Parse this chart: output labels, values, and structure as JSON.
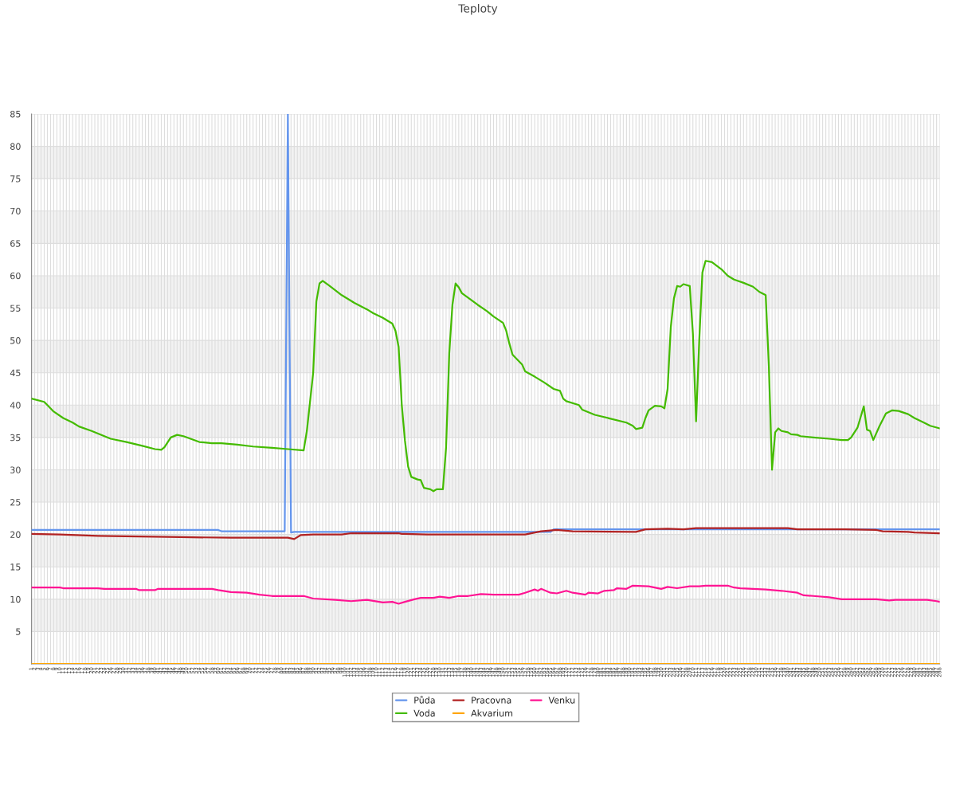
{
  "chart_data": {
    "type": "line",
    "title": "Teploty",
    "xlim": [
      1,
      288
    ],
    "xticks": [
      1,
      2,
      3,
      4,
      5,
      6,
      7,
      8,
      9,
      10,
      11,
      12,
      13,
      14,
      15,
      16,
      17,
      18,
      19,
      20,
      21,
      22,
      23,
      24,
      25,
      26,
      27,
      28,
      29,
      30,
      31,
      32,
      33,
      34,
      35,
      36,
      37,
      38,
      39,
      40,
      41,
      42,
      43,
      44,
      45,
      46,
      47,
      48,
      49,
      50,
      51,
      52,
      53,
      54,
      55,
      56,
      57,
      58,
      59,
      60,
      61,
      62,
      63,
      64,
      65,
      66,
      67,
      68,
      69,
      70,
      71,
      72,
      73,
      74,
      75,
      76,
      77,
      78,
      79,
      80,
      81,
      82,
      83,
      84,
      85,
      86,
      87,
      88,
      89,
      90,
      91,
      92,
      93,
      94,
      95,
      96,
      97,
      98,
      99,
      100,
      101,
      102,
      103,
      104,
      105,
      106,
      107,
      108,
      109,
      110,
      111,
      112,
      113,
      114,
      115,
      116,
      117,
      118,
      119,
      120,
      121,
      122,
      123,
      124,
      125,
      126,
      127,
      128,
      129,
      130,
      131,
      132,
      133,
      134,
      135,
      136,
      137,
      138,
      139,
      140,
      141,
      142,
      143,
      144,
      145,
      146,
      147,
      148,
      149,
      150,
      151,
      152,
      153,
      154,
      155,
      156,
      157,
      158,
      159,
      160,
      161,
      162,
      163,
      164,
      165,
      166,
      167,
      168,
      169,
      170,
      171,
      172,
      173,
      174,
      175,
      176,
      177,
      178,
      179,
      180,
      181,
      182,
      183,
      184,
      185,
      186,
      187,
      188,
      189,
      190,
      191,
      192,
      193,
      194,
      195,
      196,
      197,
      198,
      199,
      200,
      201,
      202,
      203,
      204,
      205,
      206,
      207,
      208,
      209,
      210,
      211,
      212,
      213,
      214,
      215,
      216,
      217,
      218,
      219,
      220,
      221,
      222,
      223,
      224,
      225,
      226,
      227,
      228,
      229,
      230,
      231,
      232,
      233,
      234,
      235,
      236,
      237,
      238,
      239,
      240,
      241,
      242,
      243,
      244,
      245,
      246,
      247,
      248,
      249,
      250,
      251,
      252,
      253,
      254,
      255,
      256,
      257,
      258,
      259,
      260,
      261,
      262,
      263,
      264,
      265,
      266,
      267,
      268,
      269,
      270,
      271,
      272,
      273,
      274,
      275,
      276,
      277,
      278,
      279,
      280,
      281,
      282,
      283,
      284,
      285,
      286,
      287,
      288
    ],
    "ylim": [
      0,
      85
    ],
    "yticks": [
      {
        "value": 0,
        "label": null
      },
      5,
      10,
      15,
      20,
      25,
      30,
      35,
      40,
      45,
      50,
      55,
      60,
      65,
      70,
      75,
      80,
      85
    ],
    "grid": true,
    "legend": "bottom",
    "marker": "none",
    "line_style": "solid",
    "bands": [
      {
        "axis": "y",
        "from": 5,
        "to": 10,
        "color": "#f2f2f2"
      },
      {
        "axis": "y",
        "from": 15,
        "to": 20,
        "color": "#f2f2f2"
      },
      {
        "axis": "y",
        "from": 25,
        "to": 30,
        "color": "#f2f2f2"
      },
      {
        "axis": "y",
        "from": 35,
        "to": 40,
        "color": "#f2f2f2"
      },
      {
        "axis": "y",
        "from": 45,
        "to": 50,
        "color": "#f2f2f2"
      },
      {
        "axis": "y",
        "from": 55,
        "to": 60,
        "color": "#f2f2f2"
      },
      {
        "axis": "y",
        "from": 65,
        "to": 70,
        "color": "#f2f2f2"
      },
      {
        "axis": "y",
        "from": 75,
        "to": 80,
        "color": "#f2f2f2"
      }
    ],
    "series": [
      {
        "name": "Půda",
        "color": "#6495ed",
        "x": [
          1,
          60,
          61,
          81,
          82,
          83,
          84,
          165,
          166,
          288
        ],
        "values": [
          20.7,
          20.7,
          20.5,
          20.5,
          85,
          20.3,
          20.4,
          20.4,
          20.8,
          20.8
        ]
      },
      {
        "name": "Voda",
        "color": "#44bb00",
        "x": [
          1,
          5,
          6,
          8,
          11,
          14,
          16,
          20,
          24,
          26,
          31,
          36,
          40,
          42,
          43,
          45,
          47,
          49,
          54,
          58,
          61,
          66,
          71,
          77,
          82,
          87,
          88,
          90,
          91,
          92,
          93,
          95,
          99,
          103,
          107,
          109,
          112,
          115,
          116,
          117,
          118,
          119,
          120,
          121,
          123,
          124,
          125,
          127,
          128,
          129,
          131,
          132,
          133,
          134,
          135,
          136,
          137,
          142,
          145,
          147,
          150,
          151,
          152,
          153,
          156,
          157,
          160,
          163,
          166,
          168,
          169,
          170,
          174,
          175,
          179,
          184,
          189,
          191,
          192,
          194,
          195,
          196,
          198,
          200,
          201,
          202,
          203,
          204,
          205,
          206,
          207,
          209,
          210,
          211,
          212,
          213,
          214,
          216,
          219,
          221,
          223,
          226,
          229,
          231,
          233,
          234,
          235,
          236,
          237,
          238,
          240,
          241,
          243,
          244,
          248,
          253,
          257,
          259,
          260,
          262,
          264,
          265,
          266,
          267,
          269,
          271,
          273,
          275,
          278,
          280,
          283,
          285,
          288
        ],
        "values": [
          41.0,
          40.5,
          40.0,
          39.0,
          38.0,
          37.3,
          36.7,
          36.0,
          35.2,
          34.8,
          34.3,
          33.7,
          33.2,
          33.1,
          33.5,
          35.0,
          35.4,
          35.2,
          34.3,
          34.1,
          34.1,
          33.9,
          33.6,
          33.4,
          33.2,
          33.0,
          36.0,
          45.0,
          56.0,
          58.8,
          59.2,
          58.5,
          57.0,
          55.8,
          54.8,
          54.2,
          53.5,
          52.6,
          51.5,
          49.0,
          40.0,
          34.5,
          30.5,
          28.9,
          28.5,
          28.4,
          27.2,
          27.0,
          26.7,
          27.0,
          27.0,
          33.5,
          48.0,
          55.5,
          58.8,
          58.2,
          57.3,
          55.5,
          54.5,
          53.7,
          52.7,
          51.5,
          49.5,
          47.8,
          46.3,
          45.2,
          44.4,
          43.5,
          42.5,
          42.2,
          41.0,
          40.6,
          40.0,
          39.3,
          38.5,
          37.9,
          37.3,
          36.8,
          36.3,
          36.5,
          38.0,
          39.2,
          39.9,
          39.8,
          39.5,
          42.5,
          52.0,
          56.5,
          58.4,
          58.3,
          58.7,
          58.4,
          51.0,
          37.5,
          50.0,
          60.5,
          62.3,
          62.1,
          61.0,
          60.0,
          59.4,
          58.9,
          58.3,
          57.5,
          57.0,
          46.0,
          30.0,
          35.8,
          36.4,
          36.0,
          35.8,
          35.5,
          35.4,
          35.2,
          35.0,
          34.8,
          34.6,
          34.6,
          35.0,
          36.5,
          39.8,
          36.2,
          36.0,
          34.6,
          36.8,
          38.7,
          39.2,
          39.1,
          38.6,
          38.0,
          37.3,
          36.8,
          36.4
        ]
      },
      {
        "name": "Pracovna",
        "color": "#b22222",
        "x": [
          1,
          10,
          22,
          35,
          48,
          64,
          82,
          84,
          86,
          90,
          99,
          102,
          117,
          118,
          126,
          157,
          162,
          167,
          172,
          192,
          195,
          202,
          207,
          211,
          240,
          243,
          258,
          268,
          270,
          278,
          280,
          288
        ],
        "values": [
          20.1,
          20.0,
          19.8,
          19.7,
          19.6,
          19.5,
          19.5,
          19.3,
          19.9,
          20.0,
          20.0,
          20.2,
          20.2,
          20.1,
          20.0,
          20.0,
          20.5,
          20.7,
          20.5,
          20.4,
          20.8,
          20.9,
          20.8,
          21.0,
          21.0,
          20.8,
          20.8,
          20.7,
          20.5,
          20.4,
          20.3,
          20.2
        ]
      },
      {
        "name": "Akvarium",
        "color": "#ffa500",
        "x": [
          1,
          288
        ],
        "values": [
          0,
          0
        ]
      },
      {
        "name": "Venku",
        "color": "#ff1493",
        "x": [
          1,
          10,
          11,
          22,
          24,
          34,
          35,
          40,
          41,
          58,
          60,
          64,
          69,
          73,
          77,
          87,
          90,
          97,
          102,
          107,
          112,
          115,
          117,
          119,
          122,
          124,
          128,
          130,
          133,
          136,
          139,
          143,
          147,
          155,
          157,
          160,
          161,
          162,
          165,
          167,
          170,
          172,
          176,
          177,
          180,
          182,
          185,
          186,
          189,
          191,
          196,
          200,
          202,
          205,
          209,
          212,
          214,
          221,
          223,
          225,
          229,
          233,
          238,
          243,
          245,
          248,
          253,
          257,
          268,
          272,
          274,
          284,
          287,
          288
        ],
        "values": [
          11.8,
          11.8,
          11.7,
          11.7,
          11.6,
          11.6,
          11.4,
          11.4,
          11.6,
          11.6,
          11.4,
          11.1,
          11.0,
          10.7,
          10.5,
          10.5,
          10.1,
          9.9,
          9.7,
          9.9,
          9.5,
          9.6,
          9.3,
          9.6,
          10.0,
          10.2,
          10.2,
          10.4,
          10.2,
          10.5,
          10.5,
          10.8,
          10.7,
          10.7,
          11.0,
          11.5,
          11.3,
          11.6,
          11.0,
          10.9,
          11.3,
          11.0,
          10.7,
          11.0,
          10.9,
          11.3,
          11.4,
          11.7,
          11.6,
          12.1,
          12.0,
          11.6,
          11.9,
          11.7,
          12.0,
          12.0,
          12.1,
          12.1,
          11.8,
          11.7,
          11.6,
          11.5,
          11.3,
          11.0,
          10.6,
          10.5,
          10.3,
          10.0,
          10.0,
          9.8,
          9.9,
          9.9,
          9.7,
          9.6
        ]
      }
    ]
  }
}
